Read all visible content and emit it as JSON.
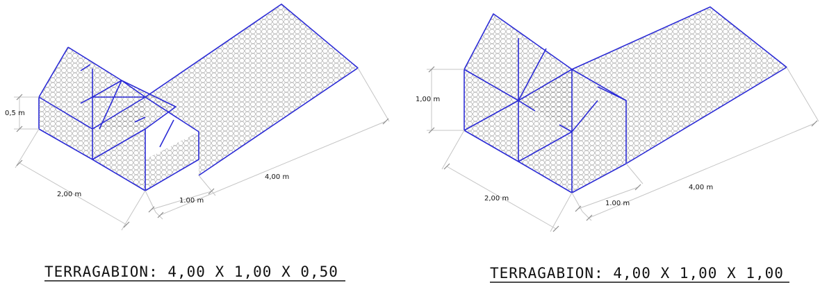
{
  "diagrams": [
    {
      "dim_height": "0,5 m",
      "dim_width": "2,00 m",
      "dim_depth": "1.00 m",
      "dim_length": "4,00 m",
      "caption": "TERRAGABION: 4,00 X 1,00 X 0,50"
    },
    {
      "dim_height": "1,00 m",
      "dim_width": "2,00 m",
      "dim_depth": "1.00 m",
      "dim_length": "4,00 m",
      "caption": "TERRAGABION: 4,00 X 1,00 X 1,00"
    }
  ],
  "colors": {
    "wire": "#2b2bd6",
    "mesh": "#9a9a9a",
    "dimension": "#c4c4c4",
    "text": "#111111"
  }
}
